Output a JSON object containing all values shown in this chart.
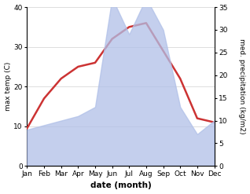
{
  "months": [
    "Jan",
    "Feb",
    "Mar",
    "Apr",
    "May",
    "Jun",
    "Jul",
    "Aug",
    "Sep",
    "Oct",
    "Nov",
    "Dec"
  ],
  "max_temp": [
    9.5,
    17,
    22,
    25,
    26,
    32,
    35,
    36,
    29,
    22,
    12,
    11
  ],
  "precipitation": [
    8,
    9,
    10,
    11,
    13,
    37,
    29,
    37,
    30,
    13,
    7,
    10
  ],
  "temp_color": "#cc3333",
  "precip_color": "#b0c0e8",
  "precip_fill_alpha": 0.75,
  "temp_ylim": [
    0,
    40
  ],
  "precip_ylim": [
    0,
    35
  ],
  "temp_yticks": [
    0,
    10,
    20,
    30,
    40
  ],
  "precip_yticks": [
    0,
    5,
    10,
    15,
    20,
    25,
    30,
    35
  ],
  "ylabel_left": "max temp (C)",
  "ylabel_right": "med. precipitation (kg/m2)",
  "xlabel": "date (month)",
  "bg_color": "#ffffff",
  "grid_color": "#d0d0d0"
}
